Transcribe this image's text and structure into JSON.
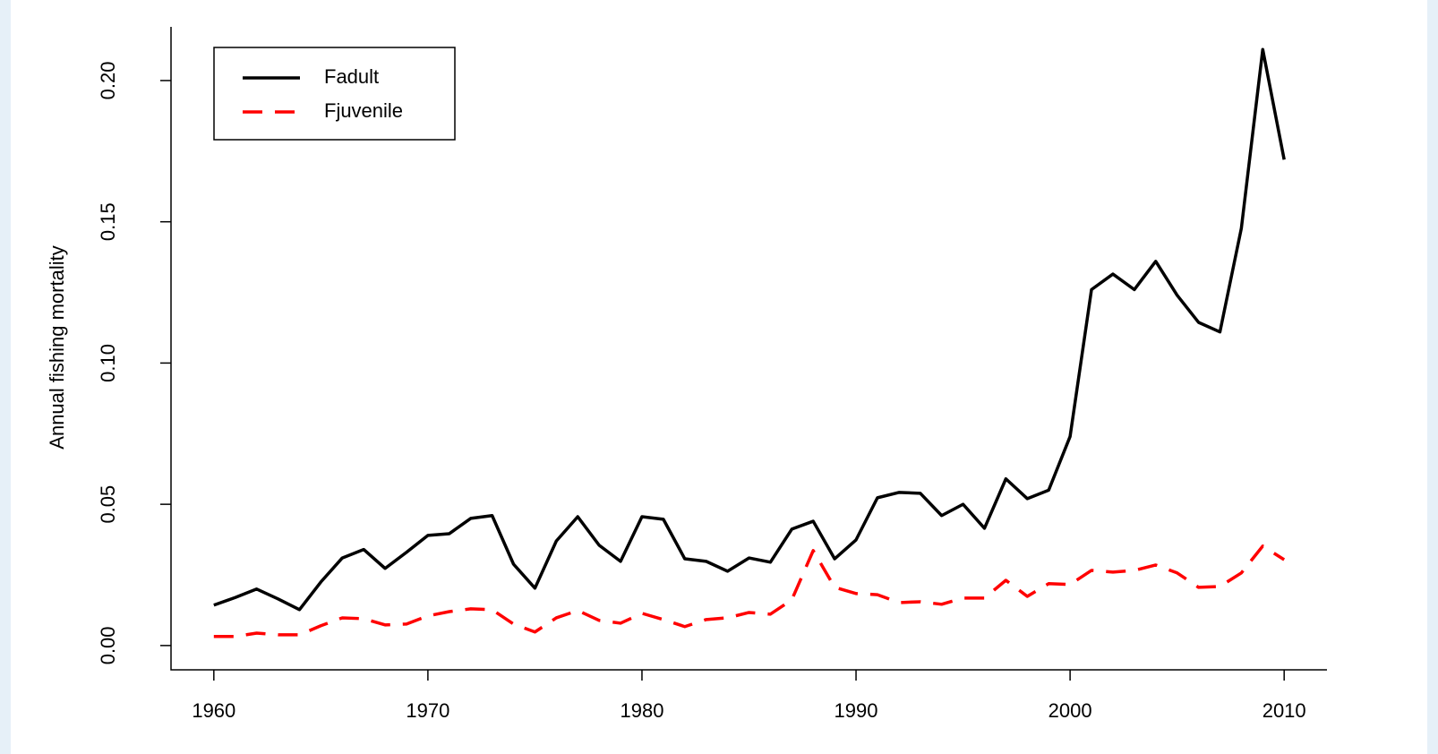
{
  "chart_data": {
    "type": "line",
    "y_label": "Annual fishing mortality",
    "x": [
      1960,
      1961,
      1962,
      1963,
      1964,
      1965,
      1966,
      1967,
      1968,
      1969,
      1970,
      1971,
      1972,
      1973,
      1974,
      1975,
      1976,
      1977,
      1978,
      1979,
      1980,
      1981,
      1982,
      1983,
      1984,
      1985,
      1986,
      1987,
      1988,
      1989,
      1990,
      1991,
      1992,
      1993,
      1994,
      1995,
      1996,
      1997,
      1998,
      1999,
      2000,
      2001,
      2002,
      2003,
      2004,
      2005,
      2006,
      2007,
      2008,
      2009,
      2010
    ],
    "series": [
      {
        "name": "Fadult",
        "color": "#000000",
        "dash": "solid",
        "values": [
          0.0143,
          0.017,
          0.02,
          0.0165,
          0.0127,
          0.0225,
          0.031,
          0.034,
          0.0273,
          0.033,
          0.039,
          0.0396,
          0.045,
          0.046,
          0.0288,
          0.0203,
          0.037,
          0.0456,
          0.0355,
          0.0298,
          0.0456,
          0.0447,
          0.0307,
          0.0298,
          0.0263,
          0.031,
          0.0295,
          0.0412,
          0.044,
          0.0307,
          0.0374,
          0.0523,
          0.0542,
          0.0539,
          0.046,
          0.05,
          0.0415,
          0.059,
          0.052,
          0.055,
          0.074,
          0.126,
          0.1315,
          0.126,
          0.136,
          0.124,
          0.1144,
          0.111,
          0.1477,
          0.211,
          0.172
        ]
      },
      {
        "name": "Fjuvenile",
        "color": "#ff0000",
        "dash": "dashed",
        "values": [
          0.0032,
          0.0032,
          0.0044,
          0.0038,
          0.0038,
          0.007,
          0.0098,
          0.0095,
          0.0073,
          0.0076,
          0.0105,
          0.012,
          0.013,
          0.0127,
          0.0076,
          0.0048,
          0.0098,
          0.0124,
          0.0089,
          0.0079,
          0.0114,
          0.0092,
          0.0067,
          0.0092,
          0.0098,
          0.0117,
          0.0111,
          0.0162,
          0.0336,
          0.0206,
          0.0184,
          0.018,
          0.0152,
          0.0155,
          0.0146,
          0.0168,
          0.0168,
          0.0231,
          0.0174,
          0.0219,
          0.0216,
          0.0266,
          0.026,
          0.0266,
          0.0285,
          0.0257,
          0.0206,
          0.0209,
          0.0257,
          0.0352,
          0.0304
        ]
      }
    ],
    "xlim": [
      1958,
      2012
    ],
    "xticks": [
      1960,
      1970,
      1980,
      1990,
      2000,
      2010
    ],
    "ylim": [
      -0.0086,
      0.219
    ],
    "yticks": [
      {
        "value": 0,
        "label": "0.00"
      },
      0.05,
      {
        "value": 0.1,
        "label": "0.10"
      },
      0.15,
      {
        "value": 0.2,
        "label": "0.20"
      }
    ],
    "legend": "top-left",
    "grid": false
  }
}
